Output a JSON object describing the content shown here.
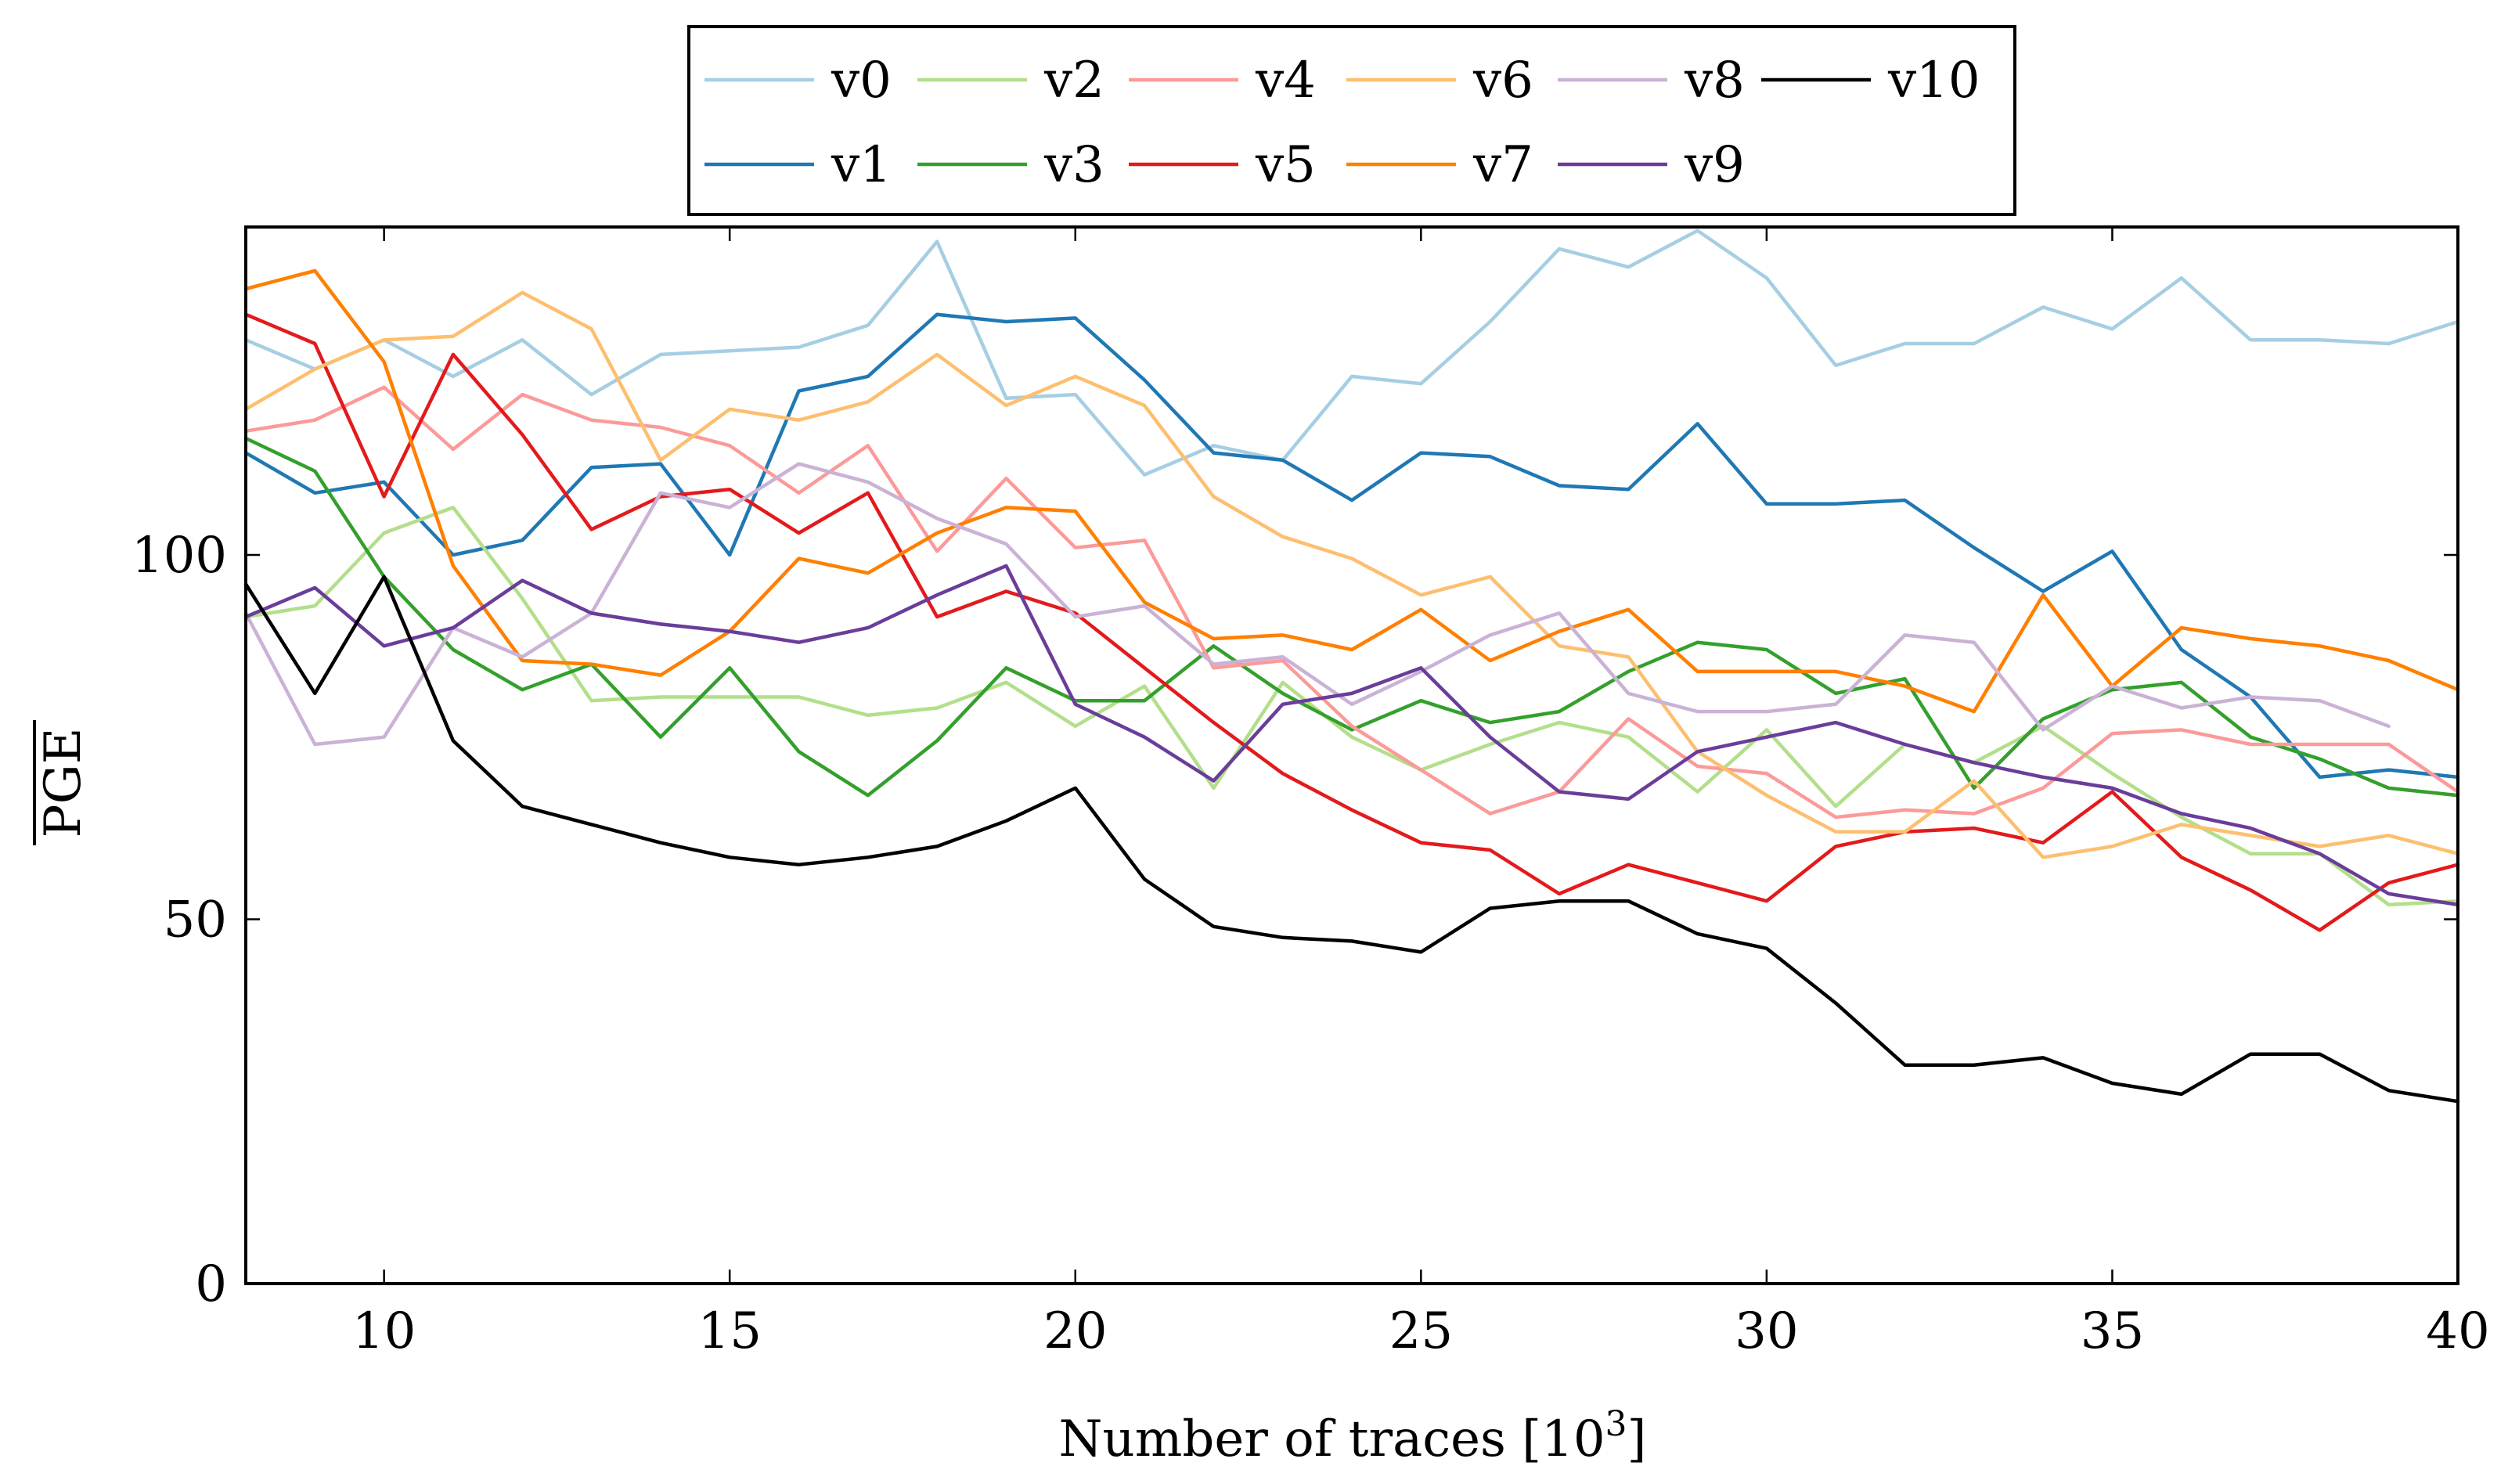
{
  "chart_data": {
    "type": "line",
    "xlabel": "Number of traces [10",
    "xlabel_sup": "3",
    "xlabel_close": "]",
    "ylabel": "PGE",
    "ylabel_overline": true,
    "xlim": [
      8,
      40
    ],
    "ylim": [
      0,
      145
    ],
    "xticks": [
      10,
      15,
      20,
      25,
      30,
      35,
      40
    ],
    "yticks": [
      0,
      50,
      100
    ],
    "legend_position": "top-center",
    "x": [
      8,
      9,
      10,
      11,
      12,
      13,
      14,
      15,
      16,
      17,
      18,
      19,
      20,
      21,
      22,
      23,
      24,
      25,
      26,
      27,
      28,
      29,
      30,
      31,
      32,
      33,
      34,
      35,
      36,
      37,
      38,
      39,
      40
    ],
    "series": [
      {
        "name": "v0",
        "color": "#a6cee3",
        "values": [
          129.5,
          125.5,
          129.5,
          124.5,
          129.5,
          122,
          127.5,
          128,
          128.5,
          131.5,
          143,
          121.5,
          122,
          111,
          115,
          113,
          124.5,
          123.5,
          132,
          142,
          139.5,
          144.5,
          138,
          126,
          129,
          129,
          134,
          131,
          138,
          129.5,
          129.5,
          129,
          132
        ]
      },
      {
        "name": "v1",
        "color": "#1f78b4",
        "values": [
          114,
          108.5,
          110,
          100,
          102,
          112,
          112.5,
          100,
          122.5,
          124.5,
          133,
          132,
          132.5,
          124,
          114,
          113,
          107.5,
          114,
          113.5,
          109.5,
          109,
          118,
          107,
          107,
          107.5,
          101,
          95,
          100.5,
          87,
          80.5,
          69.5,
          70.5,
          69.5
        ]
      },
      {
        "name": "v2",
        "color": "#b2df8a",
        "values": [
          91.5,
          93,
          103,
          106.5,
          94,
          80,
          80.5,
          80.5,
          80.5,
          78,
          79,
          82.5,
          76.5,
          82,
          68,
          82.5,
          75,
          70.5,
          74,
          77,
          75,
          67.5,
          76,
          65.5,
          74,
          71.5,
          76.5,
          70,
          64,
          59,
          59,
          52,
          52.5
        ]
      },
      {
        "name": "v3",
        "color": "#33a02c",
        "values": [
          116,
          111.5,
          97,
          87,
          81.5,
          85,
          75,
          84.5,
          73,
          67,
          74.5,
          84.5,
          80,
          80,
          87.5,
          81,
          76,
          80,
          77,
          78.5,
          84,
          88,
          87,
          81,
          83,
          68,
          77.5,
          81.5,
          82.5,
          75,
          72,
          68,
          67
        ]
      },
      {
        "name": "v4",
        "color": "#fb9a99",
        "values": [
          117,
          118.5,
          123,
          114.5,
          122,
          118.5,
          117.5,
          115,
          108.5,
          115,
          100.5,
          110.5,
          101,
          102,
          84.5,
          85.5,
          76.5,
          70.5,
          64.5,
          67.5,
          77.5,
          71,
          70,
          64,
          65,
          64.5,
          68,
          75.5,
          76,
          74,
          74,
          74,
          67.5
        ]
      },
      {
        "name": "v5",
        "color": "#e31a1c",
        "values": [
          133,
          129,
          108,
          127.5,
          116.5,
          103.5,
          108,
          109,
          103,
          108.5,
          91.5,
          95,
          92,
          84.5,
          77,
          70,
          65,
          60.5,
          59.5,
          53.5,
          57.5,
          55,
          52.5,
          60,
          62,
          62.5,
          60.5,
          67.5,
          58.5,
          54,
          48.5,
          55,
          57.5
        ]
      },
      {
        "name": "v6",
        "color": "#fdbf6f",
        "values": [
          120,
          125.5,
          129.5,
          130,
          136,
          131,
          113,
          120,
          118.5,
          121,
          127.5,
          120.5,
          124.5,
          120.5,
          108,
          102.5,
          99.5,
          94.5,
          97,
          87.5,
          86,
          73,
          67,
          62,
          62,
          69,
          58.5,
          60,
          63,
          61.5,
          60,
          61.5,
          59
        ]
      },
      {
        "name": "v7",
        "color": "#ff7f00",
        "values": [
          136.5,
          139,
          126.5,
          98.5,
          85.5,
          85,
          83.5,
          89.5,
          99.5,
          97.5,
          103,
          106.5,
          106,
          93.5,
          88.5,
          89,
          87,
          92.5,
          85.5,
          89.5,
          92.5,
          84,
          84,
          84,
          82,
          78.5,
          94.5,
          82,
          90,
          88.5,
          87.5,
          85.5,
          81.5
        ]
      },
      {
        "name": "v8",
        "color": "#cab2d6",
        "values": [
          92,
          74,
          75,
          90,
          86,
          92,
          108.5,
          106.5,
          112.5,
          110,
          105,
          101.5,
          91.5,
          93,
          85,
          86,
          79.5,
          84,
          89,
          92,
          81,
          78.5,
          78.5,
          79.5,
          89,
          88,
          76,
          82,
          79,
          80.5,
          80,
          76.5,
          null
        ]
      },
      {
        "name": "v9",
        "color": "#6a3d9a",
        "values": [
          91.5,
          95.5,
          87.5,
          90,
          96.5,
          92,
          90.5,
          89.5,
          88,
          90,
          94.5,
          98.5,
          79.5,
          75,
          69,
          79.5,
          81,
          84.5,
          75,
          67.5,
          66.5,
          73,
          75,
          77,
          74,
          71.5,
          69.5,
          68,
          64.5,
          62.5,
          59,
          53.5,
          52
        ]
      },
      {
        "name": "v10",
        "color": "#000000",
        "values": [
          96,
          81,
          97,
          74.5,
          65.5,
          63,
          60.5,
          58.5,
          57.5,
          58.5,
          60,
          63.5,
          68,
          55.5,
          49,
          47.5,
          47,
          45.5,
          51.5,
          52.5,
          52.5,
          48,
          46,
          38.5,
          30,
          30,
          31,
          27.5,
          26,
          31.5,
          31.5,
          26.5,
          25
        ]
      }
    ]
  }
}
